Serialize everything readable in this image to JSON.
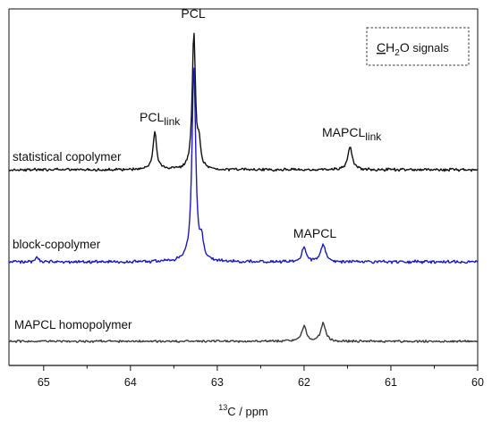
{
  "chart_data": {
    "type": "line",
    "title": "",
    "xlabel_sup": "13",
    "xlabel_rest": "C / ppm",
    "ylabel": "",
    "xlim": [
      65.4,
      60.0
    ],
    "x_reversed": true,
    "grid": false,
    "x_ticks": [
      65,
      64,
      63,
      62,
      61,
      60
    ],
    "x_tick_labels": [
      "65",
      "64",
      "63",
      "62",
      "61",
      "60"
    ],
    "legend_box": {
      "underlined": "C",
      "main": "H",
      "sub": "2",
      "tail": "O",
      "suffix": " signals",
      "position": "top-right"
    },
    "series": [
      {
        "name": "statistical copolymer",
        "color": "#111111",
        "noise": 0.012,
        "baseline": 0,
        "peaks": [
          {
            "x": 63.72,
            "height": 0.42,
            "width": 0.025
          },
          {
            "x": 63.27,
            "height": 1.52,
            "width": 0.022
          },
          {
            "x": 63.21,
            "height": 0.25,
            "width": 0.02
          },
          {
            "x": 61.47,
            "height": 0.26,
            "width": 0.03
          }
        ]
      },
      {
        "name": "block-copolymer",
        "color": "#1a1abf",
        "noise": 0.014,
        "baseline": 0,
        "peaks": [
          {
            "x": 65.08,
            "height": 0.06,
            "width": 0.02
          },
          {
            "x": 63.27,
            "height": 2.2,
            "width": 0.025
          },
          {
            "x": 63.18,
            "height": 0.22,
            "width": 0.02
          },
          {
            "x": 62.0,
            "height": 0.16,
            "width": 0.03
          },
          {
            "x": 61.78,
            "height": 0.2,
            "width": 0.032
          }
        ]
      },
      {
        "name": "MAPCL homopolymer",
        "color": "#3a3a3a",
        "noise": 0.01,
        "baseline": 0,
        "peaks": [
          {
            "x": 62.0,
            "height": 0.17,
            "width": 0.03
          },
          {
            "x": 61.78,
            "height": 0.2,
            "width": 0.032
          }
        ]
      }
    ],
    "annotations": [
      {
        "text": "PCL",
        "x": 63.27
      },
      {
        "base": "PCL",
        "sub": "link",
        "x": 63.72
      },
      {
        "base": "MAPCL",
        "sub": "link",
        "x": 61.47
      },
      {
        "text": "MAPCL",
        "x": 61.88
      }
    ]
  }
}
